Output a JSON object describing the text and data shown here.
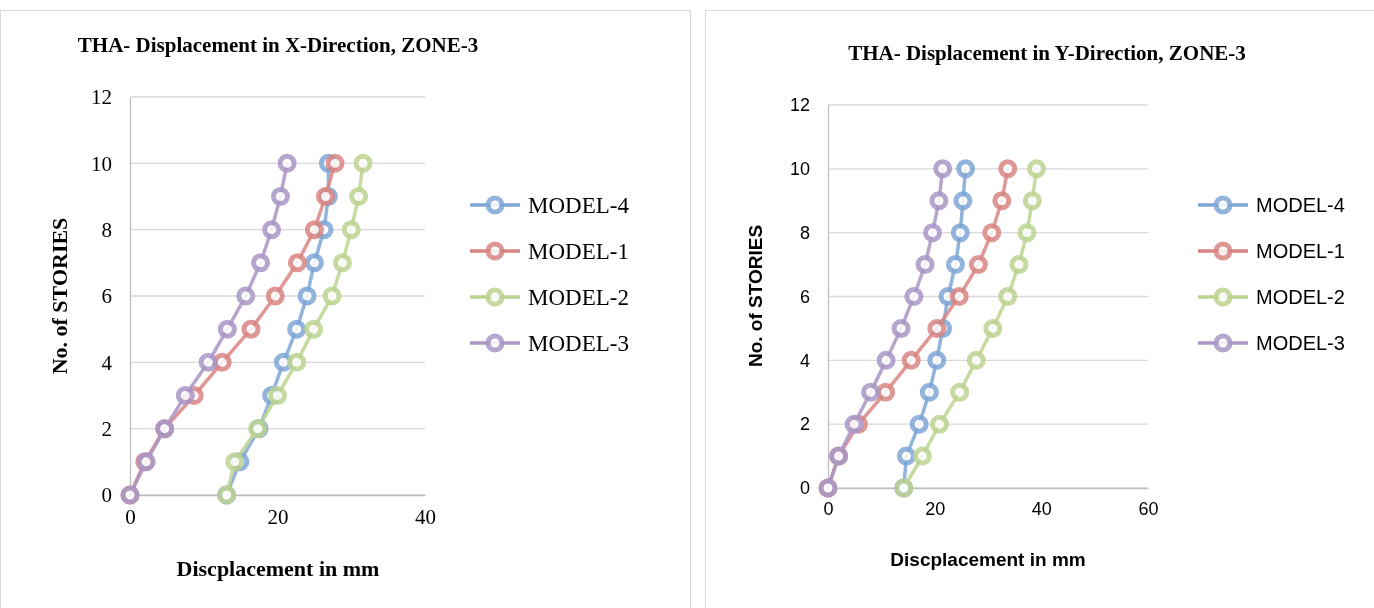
{
  "chart_data": [
    {
      "type": "line",
      "title": "THA- Displacement in X-Direction, ZONE-3",
      "xlabel": "Discplacement in mm",
      "ylabel": "No. of STORIES",
      "xlim": [
        0,
        40
      ],
      "xticks": [
        0,
        20,
        40
      ],
      "ylim": [
        0,
        12
      ],
      "yticks": [
        0,
        2,
        4,
        6,
        8,
        10,
        12
      ],
      "grid": "y",
      "legend": "right",
      "marker": "circle",
      "series": [
        {
          "name": "MODEL-4",
          "color": "#7fa6d6",
          "x": [
            13.1,
            14.9,
            17.5,
            19.2,
            20.8,
            22.6,
            24.0,
            25.0,
            26.3,
            26.9,
            26.9
          ],
          "values": [
            0,
            1,
            2,
            3,
            4,
            5,
            6,
            7,
            8,
            9,
            10
          ]
        },
        {
          "name": "MODEL-1",
          "color": "#d98683",
          "x": [
            0,
            2.0,
            4.7,
            8.7,
            12.5,
            16.4,
            19.7,
            22.7,
            25.0,
            26.5,
            27.8
          ],
          "values": [
            0,
            1,
            2,
            3,
            4,
            5,
            6,
            7,
            8,
            9,
            10
          ]
        },
        {
          "name": "MODEL-2",
          "color": "#bcd390",
          "x": [
            13.1,
            14.2,
            17.3,
            20.0,
            22.6,
            24.9,
            27.4,
            28.8,
            30.0,
            31.0,
            31.6
          ],
          "values": [
            0,
            1,
            2,
            3,
            4,
            5,
            6,
            7,
            8,
            9,
            10
          ]
        },
        {
          "name": "MODEL-3",
          "color": "#a997c6",
          "x": [
            0,
            2.2,
            4.7,
            7.5,
            10.6,
            13.2,
            15.7,
            17.7,
            19.2,
            20.4,
            21.3
          ],
          "values": [
            0,
            1,
            2,
            3,
            4,
            5,
            6,
            7,
            8,
            9,
            10
          ]
        }
      ]
    },
    {
      "type": "line",
      "title": "THA- Displacement in Y-Direction, ZONE-3",
      "xlabel": "Discplacement in mm",
      "ylabel": "No. of STORIES",
      "xlim": [
        0,
        60
      ],
      "xticks": [
        0,
        20,
        40,
        60
      ],
      "ylim": [
        0,
        12
      ],
      "yticks": [
        0,
        2,
        4,
        6,
        8,
        10,
        12
      ],
      "grid": "y",
      "legend": "right",
      "marker": "circle",
      "series": [
        {
          "name": "MODEL-4",
          "color": "#7fa6d6",
          "x": [
            14.2,
            14.7,
            17.1,
            19.0,
            20.4,
            21.5,
            22.5,
            23.9,
            24.8,
            25.3,
            25.8
          ],
          "values": [
            0,
            1,
            2,
            3,
            4,
            5,
            6,
            7,
            8,
            9,
            10
          ]
        },
        {
          "name": "MODEL-1",
          "color": "#d98683",
          "x": [
            0,
            2.0,
            5.7,
            10.8,
            15.6,
            20.4,
            24.6,
            28.2,
            30.7,
            32.6,
            33.7
          ],
          "values": [
            0,
            1,
            2,
            3,
            4,
            5,
            6,
            7,
            8,
            9,
            10
          ]
        },
        {
          "name": "MODEL-2",
          "color": "#bcd390",
          "x": [
            14.2,
            17.7,
            20.9,
            24.7,
            27.8,
            30.9,
            33.7,
            35.8,
            37.3,
            38.3,
            39.1
          ],
          "values": [
            0,
            1,
            2,
            3,
            4,
            5,
            6,
            7,
            8,
            9,
            10
          ]
        },
        {
          "name": "MODEL-3",
          "color": "#a997c6",
          "x": [
            0,
            2.0,
            4.9,
            8.0,
            10.9,
            13.7,
            16.1,
            18.2,
            19.6,
            20.8,
            21.5
          ],
          "values": [
            0,
            1,
            2,
            3,
            4,
            5,
            6,
            7,
            8,
            9,
            10
          ]
        }
      ]
    }
  ]
}
